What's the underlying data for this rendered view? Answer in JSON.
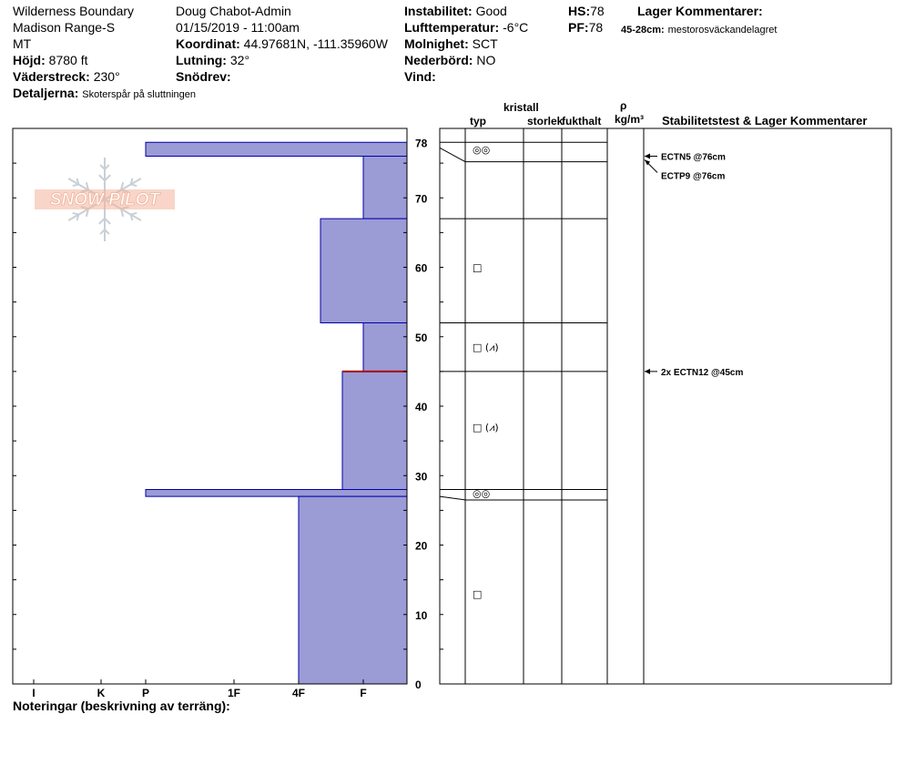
{
  "header": {
    "location": "Wilderness Boundary",
    "range": "Madison Range-S",
    "state": "MT",
    "elevation_label": "Höjd:",
    "elevation": "8780 ft",
    "aspect_label": "Väderstreck:",
    "aspect": "230°",
    "details_label": "Detaljerna:",
    "details": "Skoterspår på sluttningen",
    "observer": "Doug Chabot-Admin",
    "datetime": "01/15/2019 - 11:00am",
    "coord_label": "Koordinat:",
    "coord": "44.97681N, -111.35960W",
    "slope_label": "Lutning:",
    "slope": "32°",
    "snowdrift_label": "Snödrev:",
    "snowdrift": "",
    "stability_label": "Instabilitet:",
    "stability": "Good",
    "airtemp_label": "Lufttemperatur:",
    "airtemp": "-6°C",
    "sky_label": "Molnighet:",
    "sky": "SCT",
    "precip_label": "Nederbörd:",
    "precip": "NO",
    "wind_label": "Vind:",
    "wind": "",
    "hs_label": "HS:",
    "hs": "78",
    "pf_label": "PF:",
    "pf": "78",
    "layer_comments_title": "Lager Kommentarer:",
    "layer_comment_depth": "45-28cm:",
    "layer_comment_text": "mestorosväckandelagret"
  },
  "footer": {
    "notes_label": "Noteringar (beskrivning av terräng):"
  },
  "logo": {
    "text": "SNOW PILOT",
    "color": "#f2b29a"
  },
  "colors": {
    "bar_fill": "#9b9bd6",
    "bar_stroke": "#0000aa",
    "weak_layer": "#aa0000"
  },
  "columns": {
    "crystal": "kristall",
    "type": "typ",
    "size": "storlek",
    "moisture": "fukthalt",
    "rho": "ρ",
    "density_unit": "kg/m³",
    "stability": "Stabilitetstest & Lager Kommentarer"
  },
  "chart_data": {
    "type": "bar",
    "orientation": "horizontal",
    "title": "",
    "xlabel": "",
    "ylabel": "",
    "x_categories": [
      "I",
      "K",
      "P",
      "1F",
      "4F",
      "F"
    ],
    "y_ticks": [
      0,
      10,
      20,
      30,
      40,
      50,
      60,
      70,
      78
    ],
    "ylim": [
      0,
      80
    ],
    "hardness_profile": [
      {
        "top": 78,
        "bottom": 76,
        "hardness": "P"
      },
      {
        "top": 76,
        "bottom": 67,
        "hardness": "F"
      },
      {
        "top": 67,
        "bottom": 52,
        "hardness": "4F-"
      },
      {
        "top": 52,
        "bottom": 45,
        "hardness": "F"
      },
      {
        "top": 45,
        "bottom": 28,
        "hardness": "F+"
      },
      {
        "top": 28,
        "bottom": 27,
        "hardness": "P"
      },
      {
        "top": 27,
        "bottom": 0,
        "hardness": "4F"
      }
    ],
    "weak_layer_depth": 45,
    "layer_boundaries": [
      78,
      76,
      67,
      52,
      45,
      29,
      26.5,
      0
    ],
    "grain_symbols": [
      {
        "height": 77,
        "symbol": "◎◎"
      },
      {
        "height": 60,
        "symbol": "□"
      },
      {
        "height": 48.5,
        "symbol": "□ (⩘)"
      },
      {
        "height": 37,
        "symbol": "□ (⩘)"
      },
      {
        "height": 27.5,
        "symbol": "◎◎"
      },
      {
        "height": 13,
        "symbol": "□"
      }
    ],
    "stability_tests": [
      {
        "height": 76,
        "label": "ECTN5 @76cm"
      },
      {
        "height": 76,
        "label": "ECTP9 @76cm"
      },
      {
        "height": 45,
        "label": "2x ECTN12 @45cm"
      }
    ]
  }
}
